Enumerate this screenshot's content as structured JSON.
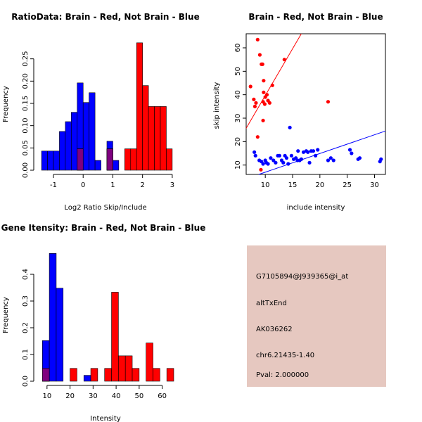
{
  "colors": {
    "brain": "#ff0000",
    "not_brain": "#0000ff",
    "overlap": "#7f007f",
    "info_bg": "#e6c8c0",
    "pval": "#aa0000",
    "bar_stroke": "#000000"
  },
  "chart_data": [
    {
      "id": "ratio",
      "type": "bar",
      "title": "RatioData: Brain - Red, Not Brain - Blue",
      "xlabel": "Log2 Ratio Skip/Include",
      "ylabel": "Frequency",
      "xlim": [
        -1.45,
        3.05
      ],
      "ylim": [
        0,
        0.3
      ],
      "x_ticks": [
        -1,
        0,
        1,
        2,
        3
      ],
      "y_ticks": [
        0.0,
        0.05,
        0.1,
        0.15,
        0.2,
        0.25
      ],
      "y_tick_labels": [
        "0.00",
        "0.05",
        "0.10",
        "0.15",
        "0.20",
        "0.25"
      ],
      "bin_width": 0.2,
      "series": [
        {
          "name": "Not Brain",
          "color_key": "not_brain",
          "bins": [
            [
              -1.4,
              0.043
            ],
            [
              -1.2,
              0.043
            ],
            [
              -1.0,
              0.043
            ],
            [
              -0.8,
              0.087
            ],
            [
              -0.6,
              0.109
            ],
            [
              -0.4,
              0.13
            ],
            [
              -0.2,
              0.196
            ],
            [
              0.0,
              0.152
            ],
            [
              0.2,
              0.174
            ],
            [
              0.4,
              0.022
            ],
            [
              0.8,
              0.065
            ],
            [
              1.0,
              0.022
            ]
          ]
        },
        {
          "name": "Brain",
          "color_key": "brain",
          "bins": [
            [
              -0.2,
              0.048
            ],
            [
              0.8,
              0.048
            ],
            [
              1.4,
              0.048
            ],
            [
              1.6,
              0.048
            ],
            [
              1.8,
              0.286
            ],
            [
              2.0,
              0.19
            ],
            [
              2.2,
              0.143
            ],
            [
              2.4,
              0.143
            ],
            [
              2.6,
              0.143
            ],
            [
              2.8,
              0.048
            ]
          ]
        }
      ]
    },
    {
      "id": "scatter",
      "type": "scatter",
      "title": "Brain - Red, Not Brain - Blue",
      "xlabel": "include intensity",
      "ylabel": "skip intensity",
      "xlim": [
        6.5,
        32
      ],
      "ylim": [
        6,
        66
      ],
      "x_ticks": [
        10,
        15,
        20,
        25,
        30
      ],
      "y_ticks": [
        10,
        20,
        30,
        40,
        50,
        60
      ],
      "series": [
        {
          "name": "Brain",
          "color_key": "brain",
          "points": [
            [
              7.3,
              43.5
            ],
            [
              7.9,
              38
            ],
            [
              8.1,
              35
            ],
            [
              8.3,
              36.5
            ],
            [
              8.6,
              63.5
            ],
            [
              8.6,
              22
            ],
            [
              9.0,
              57
            ],
            [
              9.2,
              8
            ],
            [
              9.3,
              53
            ],
            [
              9.5,
              53
            ],
            [
              9.6,
              37
            ],
            [
              9.6,
              29
            ],
            [
              9.7,
              46
            ],
            [
              9.7,
              41
            ],
            [
              9.9,
              36
            ],
            [
              10.0,
              39
            ],
            [
              10.3,
              40
            ],
            [
              10.5,
              37.5
            ],
            [
              10.8,
              36.5
            ],
            [
              11.3,
              44
            ],
            [
              13.5,
              55
            ],
            [
              21.5,
              37
            ]
          ],
          "line": [
            [
              6.5,
              25.7
            ],
            [
              16.6,
              66
            ]
          ]
        },
        {
          "name": "Not Brain",
          "color_key": "not_brain",
          "points": [
            [
              8.0,
              15.5
            ],
            [
              8.2,
              14
            ],
            [
              8.9,
              12
            ],
            [
              9.3,
              11.5
            ],
            [
              9.6,
              10.5
            ],
            [
              10.0,
              12
            ],
            [
              10.2,
              11
            ],
            [
              10.5,
              10.5
            ],
            [
              11.0,
              13
            ],
            [
              11.5,
              12
            ],
            [
              11.9,
              11
            ],
            [
              12.3,
              14
            ],
            [
              12.6,
              14
            ],
            [
              13.0,
              12
            ],
            [
              13.3,
              11
            ],
            [
              13.6,
              14
            ],
            [
              13.9,
              13
            ],
            [
              14.2,
              10.5
            ],
            [
              14.5,
              26
            ],
            [
              14.8,
              14
            ],
            [
              15.2,
              12.5
            ],
            [
              15.6,
              13
            ],
            [
              15.9,
              12
            ],
            [
              16.0,
              16
            ],
            [
              16.3,
              12
            ],
            [
              16.6,
              12.5
            ],
            [
              17.0,
              15.5
            ],
            [
              17.5,
              16
            ],
            [
              17.8,
              15.5
            ],
            [
              18.1,
              11
            ],
            [
              18.4,
              16
            ],
            [
              18.8,
              16
            ],
            [
              19.2,
              14
            ],
            [
              19.6,
              16.5
            ],
            [
              21.5,
              12
            ],
            [
              22.0,
              13
            ],
            [
              22.5,
              12
            ],
            [
              25.5,
              16.5
            ],
            [
              25.8,
              15
            ],
            [
              27.0,
              12.5
            ],
            [
              27.3,
              13
            ],
            [
              31.0,
              11.5
            ],
            [
              31.2,
              12.5
            ]
          ],
          "line": [
            [
              8.8,
              6
            ],
            [
              32,
              24.5
            ]
          ]
        }
      ]
    },
    {
      "id": "intensity",
      "type": "bar",
      "title": "Gene Itensity: Brain - Red, Not Brain - Blue",
      "xlabel": "Intensity",
      "ylabel": "Frequency",
      "xlim": [
        7,
        65
      ],
      "ylim": [
        0,
        0.5
      ],
      "x_ticks": [
        10,
        20,
        30,
        40,
        50,
        60
      ],
      "y_ticks": [
        0.0,
        0.1,
        0.2,
        0.3,
        0.4
      ],
      "y_tick_labels": [
        "0.0",
        "0.1",
        "0.2",
        "0.3",
        "0.4"
      ],
      "bin_width": 3,
      "series": [
        {
          "name": "Not Brain",
          "color_key": "not_brain",
          "bins": [
            [
              8,
              0.152
            ],
            [
              11,
              0.478
            ],
            [
              14,
              0.348
            ],
            [
              26,
              0.022
            ]
          ]
        },
        {
          "name": "Brain",
          "color_key": "brain",
          "bins": [
            [
              8,
              0.048
            ],
            [
              20,
              0.048
            ],
            [
              29,
              0.048
            ],
            [
              35,
              0.048
            ],
            [
              38,
              0.333
            ],
            [
              41,
              0.095
            ],
            [
              44,
              0.095
            ],
            [
              47,
              0.048
            ],
            [
              53,
              0.143
            ],
            [
              56,
              0.048
            ],
            [
              62,
              0.048
            ]
          ]
        }
      ]
    }
  ],
  "info_panel": {
    "probe": "G7105894@J939365@i_at",
    "event": "altTxEnd",
    "accession": "AK036262",
    "location": "chr6.21435-1.40",
    "pval": "Pval: 2.000000"
  }
}
